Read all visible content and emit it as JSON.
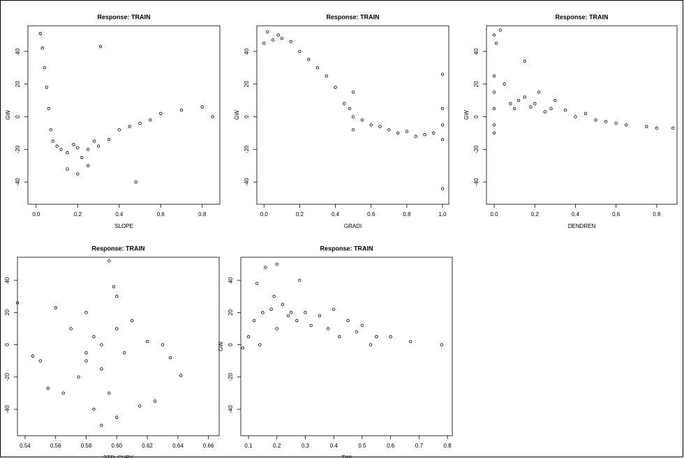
{
  "chart_data": [
    {
      "type": "scatter",
      "title": "Response: TRAIN",
      "xlabel": "SLOPE",
      "ylabel": "GW",
      "x": [
        0.02,
        0.03,
        0.04,
        0.05,
        0.06,
        0.07,
        0.08,
        0.1,
        0.12,
        0.15,
        0.18,
        0.2,
        0.22,
        0.25,
        0.28,
        0.3,
        0.35,
        0.4,
        0.45,
        0.5,
        0.55,
        0.6,
        0.7,
        0.8,
        0.85,
        0.15,
        0.2,
        0.25,
        0.31,
        0.48
      ],
      "values": [
        51,
        42,
        30,
        18,
        5,
        -8,
        -15,
        -18,
        -20,
        -22,
        -17,
        -19,
        -25,
        -20,
        -15,
        -18,
        -14,
        -8,
        -6,
        -4,
        -2,
        2,
        4,
        6,
        0,
        -32,
        -35,
        -30,
        43,
        -40
      ],
      "color": "#000000",
      "xlim": [
        -0.04,
        0.885
      ],
      "ylim": [
        -53.6,
        55.7
      ],
      "xticks": [
        {
          "value": 0,
          "label": "0.0"
        },
        0.2,
        0.4,
        0.6,
        0.8
      ],
      "yticks": [
        -40,
        -20,
        0,
        20,
        40
      ]
    },
    {
      "type": "scatter",
      "title": "Response: TRAIN",
      "xlabel": "GRADI",
      "ylabel": "GW",
      "x": [
        0.0,
        0.02,
        0.05,
        0.08,
        0.1,
        0.15,
        0.2,
        0.25,
        0.3,
        0.35,
        0.4,
        0.45,
        0.48,
        0.5,
        0.5,
        0.5,
        0.55,
        0.6,
        0.65,
        0.7,
        0.75,
        0.8,
        0.85,
        0.9,
        0.95,
        1.0,
        1.0,
        1.0,
        1.0,
        1.0
      ],
      "values": [
        45,
        52,
        47,
        50,
        48,
        46,
        40,
        35,
        30,
        25,
        18,
        8,
        5,
        15,
        0,
        -8,
        -2,
        -5,
        -6,
        -8,
        -10,
        -9,
        -12,
        -11,
        -10,
        26,
        5,
        -5,
        -14,
        -44
      ],
      "color": "#000000",
      "xlim": [
        -0.04,
        1.035
      ],
      "ylim": [
        -53.6,
        55.7
      ],
      "xticks": [
        {
          "value": 0,
          "label": "0.0"
        },
        0.2,
        0.4,
        0.6,
        0.8,
        {
          "value": 1,
          "label": "1.0"
        }
      ],
      "yticks": [
        -40,
        -20,
        0,
        20,
        40
      ]
    },
    {
      "type": "scatter",
      "title": "Response: TRAIN",
      "xlabel": "DENDREN",
      "ylabel": "GW",
      "x": [
        0,
        0,
        0,
        0,
        0,
        0,
        0.01,
        0.03,
        0.05,
        0.08,
        0.1,
        0.12,
        0.15,
        0.18,
        0.2,
        0.22,
        0.25,
        0.28,
        0.3,
        0.35,
        0.4,
        0.45,
        0.5,
        0.55,
        0.6,
        0.65,
        0.75,
        0.8,
        0.88,
        0.15
      ],
      "values": [
        -10,
        -5,
        5,
        15,
        25,
        50,
        45,
        53,
        20,
        8,
        5,
        10,
        12,
        6,
        8,
        15,
        3,
        5,
        10,
        4,
        0,
        2,
        -2,
        -3,
        -4,
        -5,
        -6,
        -7,
        -7,
        34
      ],
      "color": "#000000",
      "xlim": [
        -0.038,
        0.9
      ],
      "ylim": [
        -53.6,
        55.7
      ],
      "xticks": [
        {
          "value": 0,
          "label": "0.0"
        },
        0.2,
        0.4,
        0.6,
        0.8
      ],
      "yticks": [
        -40,
        -20,
        0,
        20,
        40
      ]
    },
    {
      "type": "scatter",
      "title": "Response: TRAIN",
      "xlabel": "STD_CURV",
      "ylabel": "GW",
      "x": [
        0.535,
        0.545,
        0.55,
        0.555,
        0.56,
        0.565,
        0.57,
        0.575,
        0.58,
        0.58,
        0.585,
        0.585,
        0.59,
        0.59,
        0.59,
        0.595,
        0.595,
        0.6,
        0.6,
        0.6,
        0.605,
        0.61,
        0.615,
        0.62,
        0.625,
        0.63,
        0.635,
        0.642,
        0.598,
        0.58
      ],
      "values": [
        26,
        -7,
        -10,
        -27,
        23,
        -30,
        10,
        -20,
        20,
        -5,
        -40,
        5,
        -50,
        0,
        -15,
        -30,
        52,
        30,
        -45,
        10,
        -5,
        15,
        -38,
        2,
        -35,
        0,
        -8,
        -19,
        36,
        -10
      ],
      "color": "#000000",
      "xlim": [
        0.535,
        0.667
      ],
      "ylim": [
        -56.4,
        54.3
      ],
      "xticks": [
        0.54,
        0.56,
        0.58,
        {
          "value": 0.6,
          "label": "0.60"
        },
        0.62,
        0.64,
        0.66
      ],
      "yticks": [
        -40,
        -20,
        0,
        20,
        40
      ]
    },
    {
      "type": "scatter",
      "title": "Response: TRAIN",
      "xlabel": "TWI",
      "ylabel": "GW",
      "x": [
        0.08,
        0.1,
        0.12,
        0.15,
        0.16,
        0.18,
        0.2,
        0.2,
        0.22,
        0.24,
        0.25,
        0.27,
        0.28,
        0.3,
        0.32,
        0.35,
        0.38,
        0.4,
        0.42,
        0.45,
        0.48,
        0.5,
        0.53,
        0.55,
        0.6,
        0.67,
        0.78,
        0.19,
        0.13,
        0.14
      ],
      "values": [
        -2,
        5,
        15,
        20,
        48,
        22,
        50,
        10,
        25,
        18,
        20,
        15,
        40,
        20,
        12,
        18,
        10,
        22,
        5,
        15,
        8,
        12,
        0,
        5,
        5,
        2,
        0,
        30,
        38,
        0
      ],
      "color": "#000000",
      "xlim": [
        0.073,
        0.817
      ],
      "ylim": [
        -56.4,
        54.3
      ],
      "xticks": [
        0.1,
        0.2,
        0.3,
        0.4,
        0.5,
        0.6,
        0.7,
        0.8
      ],
      "yticks": [
        -40,
        -20,
        0,
        20,
        40
      ]
    }
  ]
}
